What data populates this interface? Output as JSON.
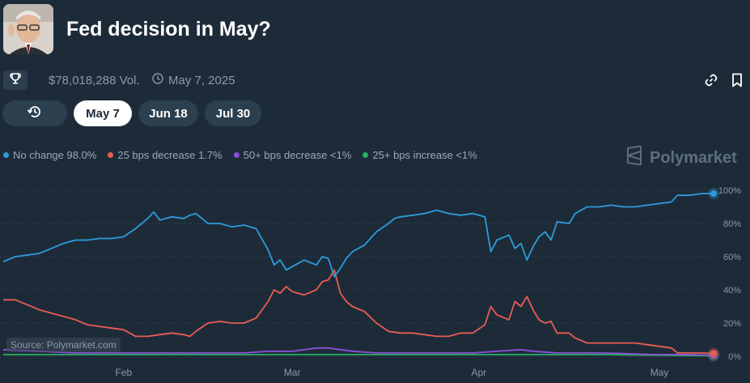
{
  "header": {
    "title": "Fed decision in May?"
  },
  "meta": {
    "volume": "$78,018,288 Vol.",
    "date": "May 7, 2025"
  },
  "tabs": [
    {
      "label": "May 7",
      "active": true
    },
    {
      "label": "Jun 18",
      "active": false
    },
    {
      "label": "Jul 30",
      "active": false
    }
  ],
  "icons": [
    "trophy-icon",
    "clock-icon",
    "link-icon",
    "bookmark-icon",
    "history-icon",
    "polymarket-logo-icon"
  ],
  "legend": [
    {
      "label": "No change 98.0%",
      "color": "#2d9cdb"
    },
    {
      "label": "25 bps decrease 1.7%",
      "color": "#e85d52"
    },
    {
      "label": "50+ bps decrease <1%",
      "color": "#8c4fd8"
    },
    {
      "label": "25+ bps increase <1%",
      "color": "#27ae60"
    }
  ],
  "brand": "Polymarket",
  "source": "Source: Polymarket.com",
  "chart_data": {
    "type": "line",
    "xlabel": "",
    "ylabel": "",
    "x_ticks": [
      "Feb",
      "Mar",
      "Apr",
      "May"
    ],
    "y_ticks": [
      "0%",
      "20%",
      "40%",
      "60%",
      "80%",
      "100%"
    ],
    "ylim": [
      0,
      100
    ],
    "x_unit": "day index from chart start (~Jan 12 = 0)",
    "xlim": [
      0,
      118
    ],
    "grid": true,
    "series": [
      {
        "name": "No change",
        "color": "#2d9cdb",
        "points": [
          [
            0,
            57
          ],
          [
            2,
            60
          ],
          [
            4,
            61
          ],
          [
            6,
            62
          ],
          [
            8,
            65
          ],
          [
            10,
            68
          ],
          [
            12,
            70
          ],
          [
            14,
            70
          ],
          [
            16,
            71
          ],
          [
            18,
            71
          ],
          [
            20,
            72
          ],
          [
            22,
            77
          ],
          [
            24,
            83
          ],
          [
            25,
            87
          ],
          [
            26,
            82
          ],
          [
            28,
            84
          ],
          [
            30,
            83
          ],
          [
            31,
            85
          ],
          [
            32,
            86
          ],
          [
            34,
            80
          ],
          [
            36,
            80
          ],
          [
            38,
            78
          ],
          [
            40,
            79
          ],
          [
            42,
            77
          ],
          [
            44,
            64
          ],
          [
            45,
            55
          ],
          [
            46,
            58
          ],
          [
            47,
            52
          ],
          [
            48,
            54
          ],
          [
            50,
            58
          ],
          [
            52,
            55
          ],
          [
            53,
            60
          ],
          [
            54,
            59
          ],
          [
            55,
            48
          ],
          [
            56,
            53
          ],
          [
            57,
            59
          ],
          [
            58,
            63
          ],
          [
            60,
            67
          ],
          [
            62,
            75
          ],
          [
            64,
            80
          ],
          [
            65,
            83
          ],
          [
            66,
            84
          ],
          [
            68,
            85
          ],
          [
            70,
            86
          ],
          [
            72,
            88
          ],
          [
            74,
            86
          ],
          [
            76,
            85
          ],
          [
            78,
            86
          ],
          [
            80,
            84
          ],
          [
            81,
            63
          ],
          [
            82,
            70
          ],
          [
            84,
            73
          ],
          [
            85,
            65
          ],
          [
            86,
            68
          ],
          [
            87,
            58
          ],
          [
            88,
            66
          ],
          [
            89,
            72
          ],
          [
            90,
            75
          ],
          [
            91,
            70
          ],
          [
            92,
            81
          ],
          [
            94,
            80
          ],
          [
            95,
            86
          ],
          [
            97,
            90
          ],
          [
            99,
            90
          ],
          [
            101,
            91
          ],
          [
            103,
            90
          ],
          [
            105,
            90
          ],
          [
            107,
            91
          ],
          [
            109,
            92
          ],
          [
            111,
            93
          ],
          [
            112,
            97
          ],
          [
            114,
            97
          ],
          [
            116,
            98
          ],
          [
            118,
            98
          ]
        ]
      },
      {
        "name": "25 bps decrease",
        "color": "#e85d52",
        "points": [
          [
            0,
            34
          ],
          [
            2,
            34
          ],
          [
            4,
            31
          ],
          [
            6,
            28
          ],
          [
            8,
            26
          ],
          [
            10,
            24
          ],
          [
            12,
            22
          ],
          [
            14,
            19
          ],
          [
            16,
            18
          ],
          [
            18,
            17
          ],
          [
            20,
            16
          ],
          [
            22,
            12
          ],
          [
            24,
            12
          ],
          [
            26,
            13
          ],
          [
            28,
            14
          ],
          [
            30,
            13
          ],
          [
            31,
            12
          ],
          [
            32,
            15
          ],
          [
            34,
            20
          ],
          [
            36,
            21
          ],
          [
            38,
            20
          ],
          [
            40,
            20
          ],
          [
            42,
            23
          ],
          [
            44,
            33
          ],
          [
            45,
            40
          ],
          [
            46,
            38
          ],
          [
            47,
            42
          ],
          [
            48,
            39
          ],
          [
            50,
            37
          ],
          [
            52,
            40
          ],
          [
            53,
            45
          ],
          [
            54,
            46
          ],
          [
            55,
            52
          ],
          [
            56,
            38
          ],
          [
            57,
            33
          ],
          [
            58,
            30
          ],
          [
            60,
            27
          ],
          [
            62,
            20
          ],
          [
            64,
            15
          ],
          [
            66,
            14
          ],
          [
            68,
            14
          ],
          [
            70,
            13
          ],
          [
            72,
            12
          ],
          [
            74,
            12
          ],
          [
            76,
            14
          ],
          [
            78,
            14
          ],
          [
            80,
            19
          ],
          [
            81,
            30
          ],
          [
            82,
            25
          ],
          [
            84,
            22
          ],
          [
            85,
            33
          ],
          [
            86,
            30
          ],
          [
            87,
            36
          ],
          [
            88,
            28
          ],
          [
            89,
            22
          ],
          [
            90,
            20
          ],
          [
            91,
            21
          ],
          [
            92,
            14
          ],
          [
            94,
            14
          ],
          [
            95,
            11
          ],
          [
            97,
            8
          ],
          [
            99,
            8
          ],
          [
            101,
            8
          ],
          [
            103,
            8
          ],
          [
            105,
            8
          ],
          [
            107,
            7
          ],
          [
            109,
            6
          ],
          [
            111,
            5
          ],
          [
            112,
            2
          ],
          [
            114,
            2
          ],
          [
            116,
            2
          ],
          [
            118,
            1.7
          ]
        ]
      },
      {
        "name": "50+ bps decrease",
        "color": "#8c4fd8",
        "points": [
          [
            0,
            4
          ],
          [
            6,
            3
          ],
          [
            12,
            2
          ],
          [
            20,
            2
          ],
          [
            30,
            2
          ],
          [
            40,
            2
          ],
          [
            44,
            3
          ],
          [
            48,
            3
          ],
          [
            50,
            4
          ],
          [
            52,
            5
          ],
          [
            54,
            5
          ],
          [
            56,
            4
          ],
          [
            58,
            3
          ],
          [
            62,
            2
          ],
          [
            70,
            2
          ],
          [
            78,
            2
          ],
          [
            82,
            3
          ],
          [
            86,
            4
          ],
          [
            88,
            3
          ],
          [
            92,
            2
          ],
          [
            100,
            2
          ],
          [
            108,
            1
          ],
          [
            114,
            1
          ],
          [
            118,
            0.6
          ]
        ]
      },
      {
        "name": "25+ bps increase",
        "color": "#27ae60",
        "points": [
          [
            0,
            1
          ],
          [
            10,
            1
          ],
          [
            20,
            1
          ],
          [
            30,
            1
          ],
          [
            40,
            1
          ],
          [
            50,
            1
          ],
          [
            60,
            1
          ],
          [
            70,
            1
          ],
          [
            80,
            1
          ],
          [
            90,
            1
          ],
          [
            100,
            1
          ],
          [
            110,
            0.6
          ],
          [
            118,
            0.3
          ]
        ]
      }
    ]
  }
}
